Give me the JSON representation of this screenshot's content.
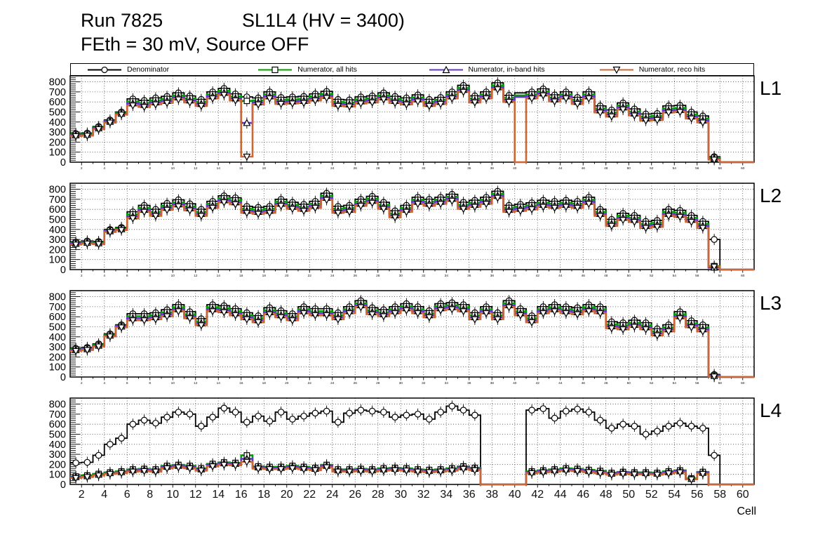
{
  "header": {
    "title_left": "Run 7825",
    "title_right": "SL1L4 (HV = 3400)",
    "subtitle": "FEth = 30 mV, Source OFF"
  },
  "axis": {
    "xlabel": "Cell",
    "xlim": [
      1,
      61
    ],
    "ylim": [
      0,
      860
    ],
    "yticks": [
      0,
      100,
      200,
      300,
      400,
      500,
      600,
      700,
      800
    ],
    "xticks": [
      2,
      4,
      6,
      8,
      10,
      12,
      14,
      16,
      18,
      20,
      22,
      24,
      26,
      28,
      30,
      32,
      34,
      36,
      38,
      40,
      42,
      44,
      46,
      48,
      50,
      52,
      54,
      56,
      58,
      60
    ],
    "grid": true
  },
  "chart_data": {
    "type": "line",
    "title": "Run 7825  SL1L4 (HV = 3400)  FEth = 30 mV, Source OFF",
    "xlabel": "Cell",
    "x_cells": {
      "start": 1,
      "end": 60
    },
    "legend_position": "top",
    "series_styles": [
      {
        "key": "denominator",
        "label": "Denominator",
        "color": "#000000",
        "marker": "circle"
      },
      {
        "key": "numerator_all",
        "label": "Numerator, all hits",
        "color": "#00a000",
        "marker": "square"
      },
      {
        "key": "numerator_inband",
        "label": "Numerator, in-band hits",
        "color": "#6633cc",
        "marker": "triangle-up"
      },
      {
        "key": "numerator_reco",
        "label": "Numerator, reco hits",
        "color": "#cc6633",
        "marker": "triangle-down"
      }
    ],
    "panels": [
      {
        "label": "L1",
        "marker_gaps": [
          40
        ],
        "denominator": [
          285,
          290,
          355,
          420,
          500,
          630,
          615,
          640,
          655,
          690,
          660,
          625,
          700,
          735,
          680,
          650,
          640,
          700,
          645,
          650,
          655,
          680,
          705,
          625,
          620,
          650,
          660,
          690,
          655,
          640,
          670,
          625,
          645,
          700,
          765,
          660,
          700,
          790,
          665,
          690,
          700,
          730,
          670,
          700,
          645,
          700,
          560,
          520,
          590,
          530,
          480,
          485,
          560,
          565,
          500,
          460,
          55,
          0,
          0,
          0
        ],
        "numerator_all": [
          275,
          280,
          345,
          410,
          490,
          605,
          590,
          615,
          630,
          665,
          635,
          600,
          675,
          710,
          655,
          610,
          615,
          675,
          620,
          625,
          630,
          655,
          680,
          600,
          595,
          625,
          635,
          665,
          630,
          615,
          645,
          600,
          620,
          675,
          740,
          635,
          675,
          765,
          640,
          665,
          675,
          705,
          645,
          675,
          620,
          675,
          535,
          495,
          565,
          505,
          455,
          460,
          535,
          540,
          475,
          435,
          45,
          0,
          0,
          0
        ],
        "numerator_inband": [
          267,
          272,
          337,
          402,
          482,
          585,
          570,
          595,
          610,
          645,
          615,
          580,
          655,
          690,
          635,
          390,
          595,
          655,
          600,
          605,
          610,
          635,
          660,
          580,
          575,
          605,
          615,
          645,
          610,
          595,
          625,
          580,
          600,
          655,
          720,
          615,
          655,
          745,
          620,
          650,
          655,
          685,
          625,
          655,
          600,
          655,
          515,
          475,
          545,
          485,
          435,
          440,
          515,
          520,
          455,
          415,
          35,
          0,
          0,
          0
        ],
        "numerator_reco": [
          259,
          264,
          329,
          394,
          474,
          565,
          550,
          575,
          590,
          625,
          595,
          560,
          635,
          670,
          615,
          55,
          575,
          635,
          580,
          585,
          590,
          615,
          640,
          560,
          555,
          585,
          595,
          625,
          590,
          575,
          605,
          560,
          580,
          635,
          700,
          595,
          635,
          725,
          600,
          0,
          635,
          665,
          605,
          635,
          580,
          635,
          495,
          455,
          525,
          465,
          415,
          420,
          495,
          500,
          435,
          395,
          25,
          0,
          0,
          0
        ]
      },
      {
        "label": "L2",
        "marker_gaps": [],
        "denominator": [
          275,
          285,
          280,
          400,
          420,
          575,
          640,
          600,
          660,
          695,
          655,
          600,
          680,
          735,
          715,
          630,
          620,
          630,
          700,
          670,
          650,
          680,
          760,
          630,
          640,
          700,
          730,
          670,
          585,
          640,
          720,
          700,
          720,
          750,
          670,
          690,
          720,
          780,
          640,
          650,
          665,
          690,
          680,
          690,
          680,
          720,
          600,
          500,
          560,
          540,
          480,
          490,
          600,
          590,
          540,
          480,
          300,
          0,
          0,
          0
        ],
        "numerator_all": [
          265,
          275,
          270,
          390,
          410,
          550,
          615,
          575,
          635,
          670,
          630,
          575,
          655,
          710,
          690,
          605,
          595,
          605,
          675,
          645,
          625,
          655,
          735,
          605,
          615,
          675,
          705,
          645,
          560,
          615,
          695,
          675,
          695,
          725,
          645,
          665,
          695,
          755,
          615,
          625,
          640,
          665,
          655,
          665,
          655,
          695,
          575,
          475,
          535,
          515,
          455,
          465,
          575,
          565,
          515,
          455,
          35,
          0,
          0,
          0
        ],
        "numerator_inband": [
          257,
          267,
          262,
          382,
          402,
          530,
          595,
          555,
          615,
          650,
          610,
          555,
          635,
          690,
          670,
          585,
          575,
          585,
          655,
          625,
          605,
          635,
          715,
          585,
          595,
          655,
          685,
          625,
          540,
          595,
          675,
          655,
          675,
          705,
          625,
          645,
          675,
          735,
          595,
          605,
          620,
          645,
          635,
          645,
          635,
          675,
          555,
          455,
          515,
          495,
          435,
          445,
          555,
          545,
          495,
          435,
          20,
          0,
          0,
          0
        ],
        "numerator_reco": [
          249,
          259,
          254,
          374,
          394,
          510,
          575,
          535,
          595,
          630,
          590,
          535,
          615,
          670,
          650,
          565,
          555,
          565,
          635,
          605,
          585,
          615,
          695,
          565,
          575,
          635,
          665,
          605,
          520,
          575,
          655,
          635,
          655,
          685,
          605,
          625,
          655,
          715,
          575,
          585,
          600,
          625,
          615,
          625,
          615,
          655,
          535,
          435,
          495,
          475,
          415,
          425,
          535,
          525,
          475,
          415,
          30,
          0,
          0,
          0
        ]
      },
      {
        "label": "L3",
        "marker_gaps": [],
        "denominator": [
          285,
          295,
          330,
          430,
          520,
          630,
          630,
          640,
          670,
          720,
          650,
          580,
          720,
          710,
          680,
          640,
          610,
          690,
          660,
          630,
          700,
          680,
          680,
          640,
          700,
          760,
          690,
          670,
          700,
          730,
          700,
          660,
          730,
          740,
          720,
          640,
          700,
          640,
          760,
          680,
          610,
          700,
          720,
          700,
          690,
          720,
          700,
          550,
          540,
          565,
          540,
          480,
          520,
          650,
          560,
          520,
          25,
          0,
          0,
          0
        ],
        "numerator_all": [
          275,
          285,
          320,
          420,
          510,
          605,
          605,
          615,
          645,
          695,
          625,
          555,
          695,
          685,
          655,
          615,
          585,
          665,
          635,
          605,
          675,
          655,
          655,
          615,
          675,
          735,
          665,
          645,
          675,
          705,
          675,
          635,
          705,
          715,
          695,
          615,
          675,
          615,
          735,
          655,
          585,
          675,
          695,
          675,
          665,
          695,
          675,
          525,
          515,
          540,
          515,
          455,
          495,
          625,
          535,
          495,
          15,
          0,
          0,
          0
        ],
        "numerator_inband": [
          267,
          277,
          312,
          412,
          502,
          585,
          585,
          595,
          625,
          675,
          605,
          535,
          675,
          665,
          635,
          595,
          565,
          645,
          615,
          585,
          655,
          635,
          635,
          595,
          655,
          715,
          645,
          625,
          655,
          685,
          655,
          615,
          685,
          695,
          675,
          595,
          655,
          595,
          715,
          635,
          565,
          655,
          675,
          655,
          645,
          675,
          655,
          505,
          495,
          520,
          495,
          435,
          475,
          605,
          515,
          475,
          10,
          0,
          0,
          0
        ],
        "numerator_reco": [
          259,
          269,
          304,
          404,
          494,
          565,
          565,
          575,
          605,
          655,
          585,
          515,
          655,
          645,
          615,
          575,
          545,
          625,
          595,
          565,
          635,
          615,
          615,
          575,
          635,
          695,
          625,
          605,
          635,
          665,
          635,
          595,
          665,
          675,
          655,
          575,
          635,
          575,
          695,
          615,
          545,
          635,
          655,
          635,
          625,
          655,
          635,
          485,
          475,
          500,
          475,
          415,
          455,
          585,
          495,
          455,
          5,
          0,
          0,
          0
        ]
      },
      {
        "label": "L4",
        "marker_gaps": [],
        "denominator": [
          215,
          220,
          290,
          400,
          460,
          600,
          640,
          610,
          670,
          720,
          700,
          580,
          670,
          760,
          720,
          620,
          680,
          630,
          720,
          650,
          680,
          710,
          730,
          620,
          710,
          740,
          730,
          720,
          670,
          690,
          700,
          650,
          720,
          780,
          740,
          690,
          0,
          0,
          0,
          0,
          740,
          755,
          660,
          730,
          750,
          720,
          640,
          560,
          600,
          580,
          500,
          530,
          580,
          610,
          580,
          560,
          290,
          0,
          0,
          0
        ],
        "numerator_all": [
          80,
          90,
          105,
          120,
          130,
          150,
          155,
          150,
          185,
          195,
          185,
          160,
          205,
          220,
          215,
          290,
          180,
          175,
          175,
          185,
          175,
          165,
          195,
          150,
          150,
          155,
          150,
          160,
          165,
          160,
          150,
          145,
          150,
          160,
          180,
          165,
          0,
          0,
          0,
          0,
          130,
          140,
          150,
          160,
          155,
          145,
          135,
          115,
          125,
          120,
          120,
          115,
          130,
          140,
          60,
          125,
          0,
          0,
          0,
          0
        ],
        "numerator_inband": [
          72,
          82,
          97,
          112,
          122,
          140,
          145,
          140,
          175,
          185,
          175,
          150,
          195,
          210,
          205,
          255,
          170,
          165,
          165,
          175,
          165,
          155,
          185,
          140,
          140,
          145,
          140,
          150,
          155,
          150,
          140,
          135,
          140,
          150,
          170,
          155,
          0,
          0,
          0,
          0,
          122,
          132,
          140,
          150,
          145,
          135,
          125,
          107,
          117,
          112,
          112,
          107,
          122,
          132,
          55,
          115,
          0,
          0,
          0,
          0
        ],
        "numerator_reco": [
          64,
          74,
          89,
          104,
          114,
          128,
          133,
          128,
          160,
          170,
          160,
          138,
          180,
          195,
          190,
          225,
          158,
          152,
          152,
          160,
          152,
          142,
          170,
          128,
          128,
          132,
          128,
          138,
          142,
          138,
          128,
          122,
          128,
          138,
          155,
          142,
          0,
          0,
          0,
          0,
          112,
          120,
          128,
          138,
          132,
          122,
          112,
          97,
          105,
          100,
          100,
          97,
          110,
          120,
          50,
          105,
          0,
          0,
          0,
          0
        ]
      }
    ]
  }
}
